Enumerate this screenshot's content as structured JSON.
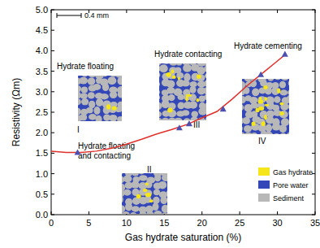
{
  "chart_data": {
    "type": "scatter",
    "x_label": "Gas hydrate saturation (%)",
    "y_label": "Resistivity (Ωm)",
    "xlim": [
      0,
      35
    ],
    "xticks": [
      0,
      5,
      10,
      15,
      20,
      25,
      30,
      35
    ],
    "ylim": [
      0,
      5
    ],
    "yticks": [
      {
        "value": 0,
        "label": "0.0"
      },
      {
        "value": 0.5,
        "label": "0.5"
      },
      {
        "value": 1,
        "label": "1.0"
      },
      {
        "value": 1.5,
        "label": "1.5"
      },
      {
        "value": 2,
        "label": "2.0"
      },
      {
        "value": 2.5,
        "label": "2.5"
      },
      {
        "value": 3,
        "label": "3.0"
      },
      {
        "value": 3.5,
        "label": "3.5"
      },
      {
        "value": 4,
        "label": "4.0"
      },
      {
        "value": 4.5,
        "label": "4.5"
      },
      {
        "value": 5,
        "label": "5.0"
      }
    ],
    "grid": false,
    "series": [
      {
        "type": "scatter",
        "marker": "triangle",
        "color": "#4a4fb0",
        "x": [
          3.5,
          17.0,
          18.3,
          22.8,
          27.8,
          31.0
        ],
        "values": [
          1.52,
          2.12,
          2.22,
          2.58,
          3.42,
          3.92
        ]
      },
      {
        "type": "line",
        "line_style": "solid",
        "color": "#e0302b",
        "x": [
          0,
          2,
          4,
          6,
          8,
          10,
          12,
          14,
          16,
          18,
          20,
          22,
          24,
          26,
          28,
          30,
          31
        ],
        "values": [
          1.55,
          1.52,
          1.52,
          1.55,
          1.62,
          1.72,
          1.84,
          1.97,
          2.08,
          2.2,
          2.36,
          2.52,
          2.82,
          3.15,
          3.45,
          3.75,
          3.9
        ]
      }
    ],
    "insets": [
      {
        "caption": [
          "Hydrate floating"
        ],
        "label": "I"
      },
      {
        "caption": [
          "Hydrate floating",
          "and contacting"
        ],
        "label": "II"
      },
      {
        "caption": [
          "Hydrate contacting"
        ],
        "label": "III"
      },
      {
        "caption": [
          "Hydrate cementing"
        ],
        "label": "IV"
      }
    ],
    "phase_legend": [
      {
        "name": "Gas hydrate",
        "color": "#f5e61a"
      },
      {
        "name": "Pore water",
        "color": "#3347b8"
      },
      {
        "name": "Sediment",
        "color": "#b8b8b8"
      }
    ],
    "scale_bar": "0.4 mm"
  }
}
